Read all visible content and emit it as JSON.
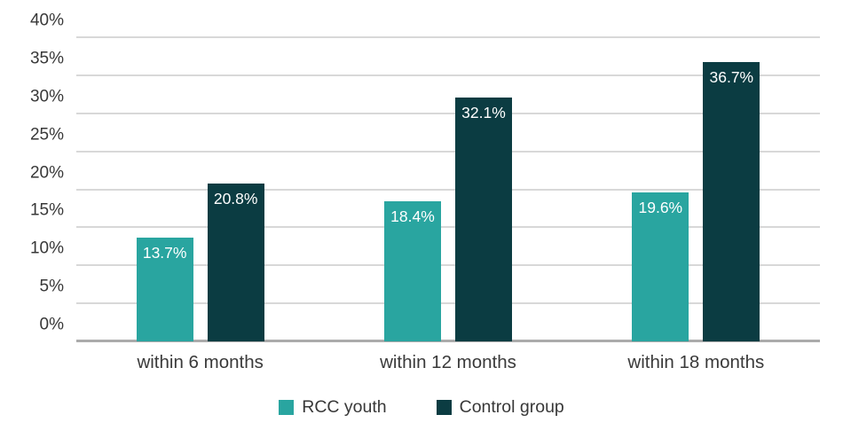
{
  "chart_data": {
    "type": "bar",
    "title": "",
    "xlabel": "",
    "ylabel": "",
    "categories": [
      "within 6 months",
      "within 12 months",
      "within 18 months"
    ],
    "series": [
      {
        "name": "RCC youth",
        "color": "#29a5a0",
        "values": [
          13.7,
          18.4,
          19.6
        ],
        "value_labels": [
          "13.7%",
          "18.4%",
          "19.6%"
        ]
      },
      {
        "name": "Control group",
        "color": "#0b3c42",
        "values": [
          20.8,
          32.1,
          36.7
        ],
        "value_labels": [
          "20.8%",
          "32.1%",
          "36.7%"
        ]
      }
    ],
    "ylim": [
      0,
      40
    ],
    "yticks": [
      {
        "value": 0,
        "label": "0%"
      },
      {
        "value": 5,
        "label": "5%"
      },
      {
        "value": 10,
        "label": "10%"
      },
      {
        "value": 15,
        "label": "15%"
      },
      {
        "value": 20,
        "label": "20%"
      },
      {
        "value": 25,
        "label": "25%"
      },
      {
        "value": 30,
        "label": "30%"
      },
      {
        "value": 35,
        "label": "35%"
      },
      {
        "value": 40,
        "label": "40%"
      }
    ],
    "grid": "horizontal",
    "legend_position": "bottom"
  },
  "colors": {
    "series_rcc_youth": "#29a5a0",
    "series_control_group": "#0b3c42",
    "gridline": "#b1b1b1",
    "axis_line": "#ababab",
    "tick_text": "#383838",
    "bar_value_text": "#ffffff",
    "background": "#ffffff"
  }
}
